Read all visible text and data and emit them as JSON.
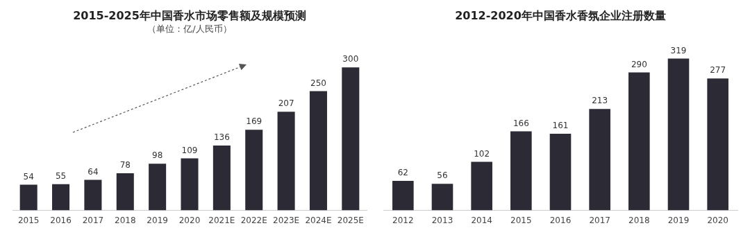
{
  "chart_data": [
    {
      "type": "bar",
      "title": "2015-2025年中国香水市场零售额及规模预测",
      "subtitle": "（单位：亿/人民币）",
      "categories": [
        "2015",
        "2016",
        "2017",
        "2018",
        "2019",
        "2020",
        "2021E",
        "2022E",
        "2023E",
        "2024E",
        "2025E"
      ],
      "values": [
        54,
        55,
        64,
        78,
        98,
        109,
        136,
        169,
        207,
        250,
        300
      ],
      "color": "#2b2a35",
      "data_labels": true,
      "grid": false,
      "legend": false
    },
    {
      "type": "bar",
      "title": "2012-2020年中国香水香氛企业注册数量",
      "categories": [
        "2012",
        "2013",
        "2014",
        "2015",
        "2016",
        "2017",
        "2018",
        "2019",
        "2020"
      ],
      "values": [
        62,
        56,
        102,
        166,
        161,
        213,
        290,
        319,
        277
      ],
      "color": "#2b2a35",
      "data_labels": true,
      "grid": false,
      "legend": false
    }
  ]
}
